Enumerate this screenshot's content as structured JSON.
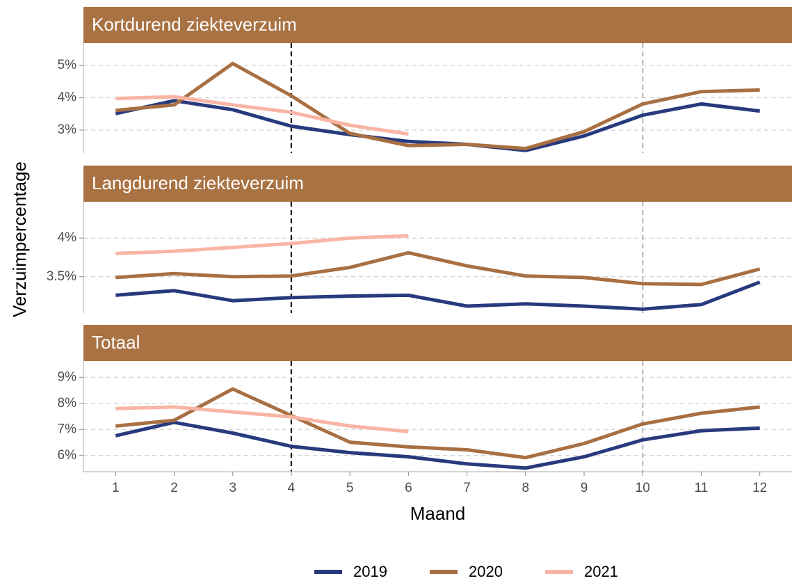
{
  "chart_data": [
    {
      "type": "line",
      "title": "Kortdurend ziekteverzuim",
      "x": [
        1,
        2,
        3,
        4,
        5,
        6,
        7,
        8,
        9,
        10,
        11,
        12
      ],
      "xlim": [
        0.45,
        12.55
      ],
      "ylim": [
        2.29,
        5.69
      ],
      "yticks": [
        {
          "value": 3,
          "label": "3%"
        },
        {
          "value": 4,
          "label": "4%"
        },
        {
          "value": 5,
          "label": "5%"
        }
      ],
      "grid": true,
      "vlines": [
        {
          "x": 4,
          "color": "#000000"
        },
        {
          "x": 10,
          "color": "#bbbbbb"
        }
      ],
      "series": [
        {
          "name": "2019",
          "color": "#283a7e",
          "values": [
            3.51,
            3.91,
            3.63,
            3.12,
            2.86,
            2.65,
            2.56,
            2.37,
            2.82,
            3.46,
            3.81,
            3.59
          ]
        },
        {
          "name": "2020",
          "color": "#a86f42",
          "values": [
            3.61,
            3.78,
            5.06,
            4.06,
            2.9,
            2.52,
            2.56,
            2.43,
            2.95,
            3.81,
            4.19,
            4.24
          ]
        },
        {
          "name": "2021",
          "color": "#f9b5a4",
          "values": [
            3.98,
            4.03,
            3.78,
            3.55,
            3.15,
            2.88,
            null,
            null,
            null,
            null,
            null,
            null
          ]
        }
      ]
    },
    {
      "type": "line",
      "title": "Langdurend ziekteverzuim",
      "y_label": "Verzuimpercentage",
      "x": [
        1,
        2,
        3,
        4,
        5,
        6,
        7,
        8,
        9,
        10,
        11,
        12
      ],
      "xlim": [
        0.45,
        12.55
      ],
      "ylim": [
        3.03,
        4.47
      ],
      "yticks": [
        {
          "value": 3.5,
          "label": "3.5%"
        },
        {
          "value": 4,
          "label": "4%"
        }
      ],
      "grid": true,
      "vlines": [
        {
          "x": 4,
          "color": "#000000"
        },
        {
          "x": 10,
          "color": "#bbbbbb"
        }
      ],
      "series": [
        {
          "name": "2019",
          "color": "#283a7e",
          "values": [
            3.26,
            3.32,
            3.19,
            3.23,
            3.25,
            3.26,
            3.12,
            3.15,
            3.12,
            3.08,
            3.14,
            3.43
          ]
        },
        {
          "name": "2020",
          "color": "#a86f42",
          "values": [
            3.49,
            3.54,
            3.5,
            3.51,
            3.62,
            3.81,
            3.64,
            3.51,
            3.49,
            3.41,
            3.4,
            3.6
          ]
        },
        {
          "name": "2021",
          "color": "#f9b5a4",
          "values": [
            3.8,
            3.83,
            3.88,
            3.93,
            4.0,
            4.03,
            null,
            null,
            null,
            null,
            null,
            null
          ]
        }
      ]
    },
    {
      "type": "line",
      "title": "Totaal",
      "x_label": "Maand",
      "x": [
        1,
        2,
        3,
        4,
        5,
        6,
        7,
        8,
        9,
        10,
        11,
        12
      ],
      "xlim": [
        0.45,
        12.55
      ],
      "xticks": [
        1,
        2,
        3,
        4,
        5,
        6,
        7,
        8,
        9,
        10,
        11,
        12
      ],
      "ylim": [
        5.38,
        9.62
      ],
      "yticks": [
        {
          "value": 6,
          "label": "6%"
        },
        {
          "value": 7,
          "label": "7%"
        },
        {
          "value": 8,
          "label": "8%"
        },
        {
          "value": 9,
          "label": "9%"
        }
      ],
      "grid": true,
      "vlines": [
        {
          "x": 4,
          "color": "#000000"
        },
        {
          "x": 10,
          "color": "#bbbbbb"
        }
      ],
      "series": [
        {
          "name": "2019",
          "color": "#283a7e",
          "values": [
            6.76,
            7.27,
            6.86,
            6.35,
            6.11,
            5.95,
            5.68,
            5.52,
            5.95,
            6.6,
            6.95,
            7.05
          ]
        },
        {
          "name": "2020",
          "color": "#a86f42",
          "values": [
            7.13,
            7.35,
            8.55,
            7.53,
            6.51,
            6.33,
            6.22,
            5.92,
            6.46,
            7.21,
            7.62,
            7.86
          ]
        },
        {
          "name": "2021",
          "color": "#f9b5a4",
          "values": [
            7.8,
            7.86,
            7.67,
            7.48,
            7.13,
            6.92,
            null,
            null,
            null,
            null,
            null,
            null
          ]
        }
      ]
    }
  ]
}
